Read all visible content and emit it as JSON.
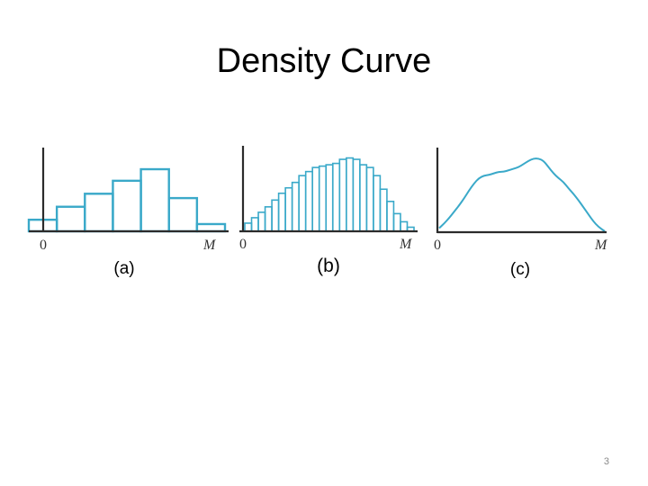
{
  "slide": {
    "title": "Density Curve",
    "number": "3"
  },
  "colors": {
    "accent": "#3aa9c9",
    "axis": "#2b2b2b"
  },
  "chart_data": [
    {
      "type": "bar",
      "caption": "(a)",
      "x_ticks": [
        "0",
        "M"
      ],
      "bin_edges": [
        -1,
        0,
        1,
        2,
        3,
        4,
        5,
        6
      ],
      "values": [
        0.8,
        1.7,
        2.6,
        3.5,
        4.3,
        2.3,
        0.5
      ],
      "ylim": [
        0,
        4.8
      ]
    },
    {
      "type": "bar",
      "caption": "(b)",
      "x_ticks": [
        "0",
        "M"
      ],
      "bin_edges_range": [
        -0.5,
        13.5
      ],
      "values": [
        0.6,
        1.0,
        1.4,
        1.8,
        2.3,
        2.8,
        3.2,
        3.6,
        4.1,
        4.4,
        4.7,
        4.8,
        4.9,
        5.0,
        5.3,
        5.4,
        5.3,
        4.9,
        4.7,
        4.1,
        3.1,
        2.2,
        1.3,
        0.7,
        0.3
      ],
      "ylim": [
        0,
        5.9
      ]
    },
    {
      "type": "line",
      "caption": "(c)",
      "x_ticks": [
        "0",
        "M"
      ],
      "x": [
        0,
        0.03,
        0.06,
        0.09,
        0.12,
        0.15,
        0.18,
        0.21,
        0.24,
        0.27,
        0.3,
        0.33,
        0.36,
        0.39,
        0.42,
        0.45,
        0.48,
        0.51,
        0.54,
        0.57,
        0.6,
        0.63,
        0.66,
        0.69,
        0.72,
        0.75,
        0.78,
        0.81,
        0.84,
        0.87,
        0.9,
        0.93,
        0.96,
        1.0
      ],
      "y": [
        0.04,
        0.1,
        0.17,
        0.25,
        0.33,
        0.42,
        0.52,
        0.61,
        0.68,
        0.71,
        0.72,
        0.74,
        0.76,
        0.76,
        0.78,
        0.8,
        0.82,
        0.86,
        0.9,
        0.93,
        0.93,
        0.9,
        0.82,
        0.74,
        0.68,
        0.63,
        0.55,
        0.48,
        0.4,
        0.31,
        0.22,
        0.13,
        0.06,
        0.0
      ],
      "ylim": [
        0,
        1.0
      ]
    }
  ]
}
